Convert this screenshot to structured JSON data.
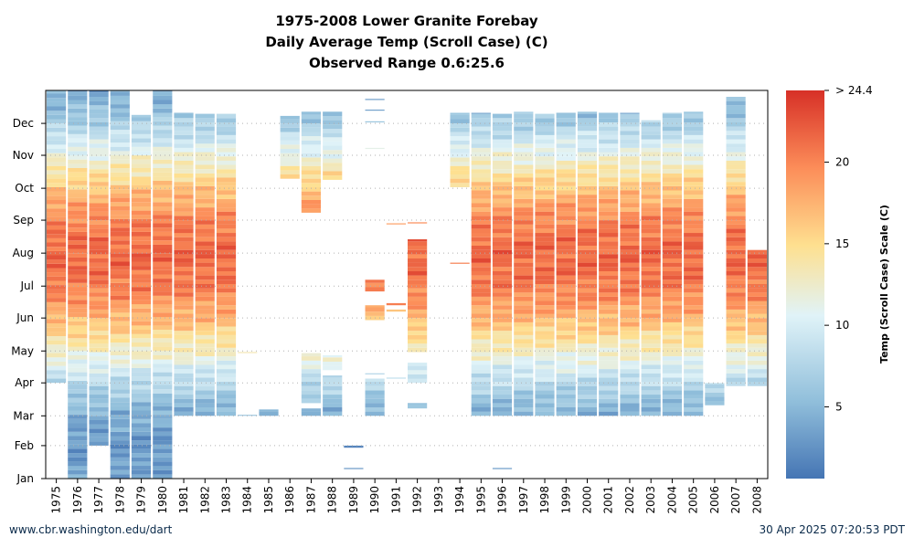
{
  "chart_data": {
    "type": "heatmap",
    "title": "1975-2008 Lower Granite Forebay",
    "subtitle": "Daily Average Temp (Scroll Case) (C)",
    "subtitle2": "Observed Range 0.6:25.6",
    "colorbar_label": "Temp (Scroll Case) Scale (C)",
    "colorbar_ticks": [
      "> 24.4",
      "20",
      "15",
      "10",
      "5"
    ],
    "colorbar_tick_values": [
      24.4,
      20,
      15,
      10,
      5
    ],
    "color_range": [
      0.6,
      24.4
    ],
    "x_categories": [
      "1975",
      "1976",
      "1977",
      "1978",
      "1979",
      "1980",
      "1981",
      "1982",
      "1983",
      "1984",
      "1985",
      "1986",
      "1987",
      "1988",
      "1989",
      "1990",
      "1991",
      "1992",
      "1993",
      "1994",
      "1995",
      "1996",
      "1997",
      "1998",
      "1999",
      "2000",
      "2001",
      "2002",
      "2003",
      "2004",
      "2005",
      "2006",
      "2007",
      "2008"
    ],
    "y_labels": [
      "Jan",
      "Feb",
      "Mar",
      "Apr",
      "May",
      "Jun",
      "Jul",
      "Aug",
      "Sep",
      "Oct",
      "Nov",
      "Dec"
    ],
    "y_label_days": [
      1,
      32,
      60,
      91,
      121,
      152,
      182,
      213,
      244,
      274,
      305,
      335
    ],
    "y_range_days": [
      1,
      366
    ],
    "grid": true,
    "colors": {
      "cold": "#4575b4",
      "cool": "#91bfdb",
      "mild": "#e0f3f8",
      "warm": "#fee090",
      "hot": "#fc8d59",
      "hottest": "#d73027"
    },
    "year_coverage": [
      {
        "year": "1975",
        "ranges": [
          [
            91,
            366
          ]
        ]
      },
      {
        "year": "1976",
        "ranges": [
          [
            1,
            366
          ]
        ]
      },
      {
        "year": "1977",
        "ranges": [
          [
            32,
            366
          ]
        ]
      },
      {
        "year": "1978",
        "ranges": [
          [
            1,
            366
          ]
        ]
      },
      {
        "year": "1979",
        "ranges": [
          [
            1,
            343
          ]
        ]
      },
      {
        "year": "1980",
        "ranges": [
          [
            1,
            366
          ]
        ]
      },
      {
        "year": "1981",
        "ranges": [
          [
            60,
            345
          ]
        ]
      },
      {
        "year": "1982",
        "ranges": [
          [
            60,
            344
          ]
        ]
      },
      {
        "year": "1983",
        "ranges": [
          [
            60,
            344
          ]
        ]
      },
      {
        "year": "1984",
        "ranges": [
          [
            60,
            61
          ],
          [
            119,
            120
          ]
        ]
      },
      {
        "year": "1985",
        "ranges": [
          [
            60,
            66
          ]
        ]
      },
      {
        "year": "1986",
        "ranges": [
          [
            283,
            342
          ]
        ]
      },
      {
        "year": "1987",
        "ranges": [
          [
            60,
            67
          ],
          [
            72,
            119
          ],
          [
            251,
            346
          ]
        ]
      },
      {
        "year": "1988",
        "ranges": [
          [
            60,
            98
          ],
          [
            103,
            117
          ],
          [
            282,
            346
          ]
        ]
      },
      {
        "year": "1989",
        "ranges": [
          [
            10,
            11
          ],
          [
            30,
            32
          ]
        ]
      },
      {
        "year": "1990",
        "ranges": [
          [
            60,
            95
          ],
          [
            99,
            100
          ],
          [
            150,
            164
          ],
          [
            177,
            188
          ],
          [
            311,
            312
          ],
          [
            336,
            337
          ],
          [
            347,
            348
          ],
          [
            357,
            358
          ]
        ]
      },
      {
        "year": "1991",
        "ranges": [
          [
            95,
            96
          ],
          [
            158,
            160
          ],
          [
            164,
            166
          ],
          [
            240,
            241
          ]
        ]
      },
      {
        "year": "1992",
        "ranges": [
          [
            67,
            72
          ],
          [
            91,
            110
          ],
          [
            120,
            226
          ],
          [
            241,
            242
          ]
        ]
      },
      {
        "year": "1993",
        "ranges": []
      },
      {
        "year": "1994",
        "ranges": [
          [
            203,
            204
          ],
          [
            275,
            345
          ]
        ]
      },
      {
        "year": "1995",
        "ranges": [
          [
            60,
            345
          ]
        ]
      },
      {
        "year": "1996",
        "ranges": [
          [
            10,
            11
          ],
          [
            60,
            344
          ]
        ]
      },
      {
        "year": "1997",
        "ranges": [
          [
            60,
            346
          ]
        ]
      },
      {
        "year": "1998",
        "ranges": [
          [
            60,
            344
          ]
        ]
      },
      {
        "year": "1999",
        "ranges": [
          [
            60,
            345
          ]
        ]
      },
      {
        "year": "2000",
        "ranges": [
          [
            60,
            346
          ]
        ]
      },
      {
        "year": "2001",
        "ranges": [
          [
            60,
            345
          ]
        ]
      },
      {
        "year": "2002",
        "ranges": [
          [
            60,
            345
          ]
        ]
      },
      {
        "year": "2003",
        "ranges": [
          [
            60,
            338
          ]
        ]
      },
      {
        "year": "2004",
        "ranges": [
          [
            60,
            345
          ]
        ]
      },
      {
        "year": "2005",
        "ranges": [
          [
            60,
            346
          ]
        ]
      },
      {
        "year": "2006",
        "ranges": [
          [
            70,
            91
          ]
        ]
      },
      {
        "year": "2007",
        "ranges": [
          [
            88,
            360
          ]
        ]
      },
      {
        "year": "2008",
        "ranges": [
          [
            88,
            216
          ]
        ]
      }
    ]
  },
  "footer": {
    "left": "www.cbr.washington.edu/dart",
    "right": "30 Apr 2025 07:20:53 PDT"
  }
}
